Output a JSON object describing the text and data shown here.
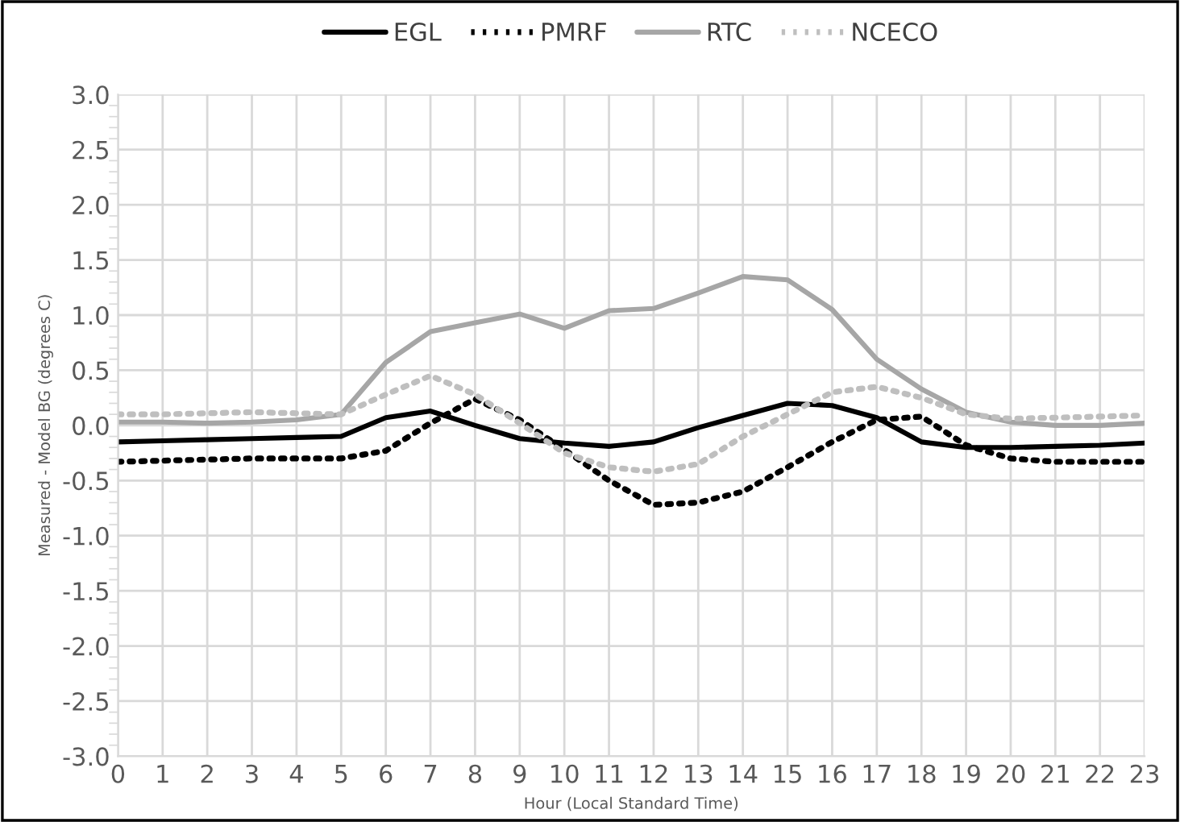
{
  "chart_data": {
    "type": "line",
    "xlabel": "Hour (Local Standard Time)",
    "ylabel": "Measured - Model BG (degrees C)",
    "x": [
      0,
      1,
      2,
      3,
      4,
      5,
      6,
      7,
      8,
      9,
      10,
      11,
      12,
      13,
      14,
      15,
      16,
      17,
      18,
      19,
      20,
      21,
      22,
      23
    ],
    "series": [
      {
        "name": "EGL",
        "color": "#000000",
        "line_style": "solid",
        "values": [
          -0.15,
          -0.14,
          -0.13,
          -0.12,
          -0.11,
          -0.1,
          0.07,
          0.13,
          0.0,
          -0.12,
          -0.16,
          -0.19,
          -0.15,
          -0.02,
          0.09,
          0.2,
          0.18,
          0.07,
          -0.15,
          -0.2,
          -0.2,
          -0.19,
          -0.18,
          -0.16
        ]
      },
      {
        "name": "PMRF",
        "color": "#000000",
        "line_style": "dotted",
        "values": [
          -0.33,
          -0.32,
          -0.31,
          -0.3,
          -0.3,
          -0.3,
          -0.23,
          0.02,
          0.24,
          0.05,
          -0.22,
          -0.5,
          -0.72,
          -0.7,
          -0.6,
          -0.38,
          -0.15,
          0.05,
          0.08,
          -0.18,
          -0.3,
          -0.33,
          -0.33,
          -0.33
        ]
      },
      {
        "name": "RTC",
        "color": "#a6a6a6",
        "line_style": "solid",
        "values": [
          0.03,
          0.03,
          0.02,
          0.03,
          0.05,
          0.1,
          0.57,
          0.85,
          0.93,
          1.01,
          0.88,
          1.04,
          1.06,
          1.2,
          1.35,
          1.32,
          1.05,
          0.6,
          0.33,
          0.12,
          0.03,
          0.0,
          0.0,
          0.02
        ]
      },
      {
        "name": "NCECO",
        "color": "#bfbfbf",
        "line_style": "dotted",
        "values": [
          0.1,
          0.1,
          0.11,
          0.12,
          0.11,
          0.1,
          0.28,
          0.45,
          0.28,
          0.02,
          -0.25,
          -0.38,
          -0.42,
          -0.35,
          -0.1,
          0.1,
          0.3,
          0.35,
          0.25,
          0.1,
          0.06,
          0.07,
          0.08,
          0.09
        ]
      }
    ],
    "xlim": [
      0,
      23
    ],
    "xticks": [
      0,
      1,
      2,
      3,
      4,
      5,
      6,
      7,
      8,
      9,
      10,
      11,
      12,
      13,
      14,
      15,
      16,
      17,
      18,
      19,
      20,
      21,
      22,
      23
    ],
    "ylim": [
      -3.0,
      3.0
    ],
    "yticks": [
      {
        "value": -3,
        "label": "-3.0"
      },
      {
        "value": -2.5,
        "label": "-2.5"
      },
      {
        "value": -2,
        "label": "-2.0"
      },
      {
        "value": -1.5,
        "label": "-1.5"
      },
      {
        "value": -1,
        "label": "-1.0"
      },
      {
        "value": -0.5,
        "label": "-0.5"
      },
      {
        "value": 0,
        "label": "0.0"
      },
      {
        "value": 0.5,
        "label": "0.5"
      },
      {
        "value": 1,
        "label": "1.0"
      },
      {
        "value": 1.5,
        "label": "1.5"
      },
      {
        "value": 2,
        "label": "2.0"
      },
      {
        "value": 2.5,
        "label": "2.5"
      },
      {
        "value": 3,
        "label": "3.0"
      }
    ],
    "grid": true,
    "legend": "top",
    "marker": "none"
  }
}
